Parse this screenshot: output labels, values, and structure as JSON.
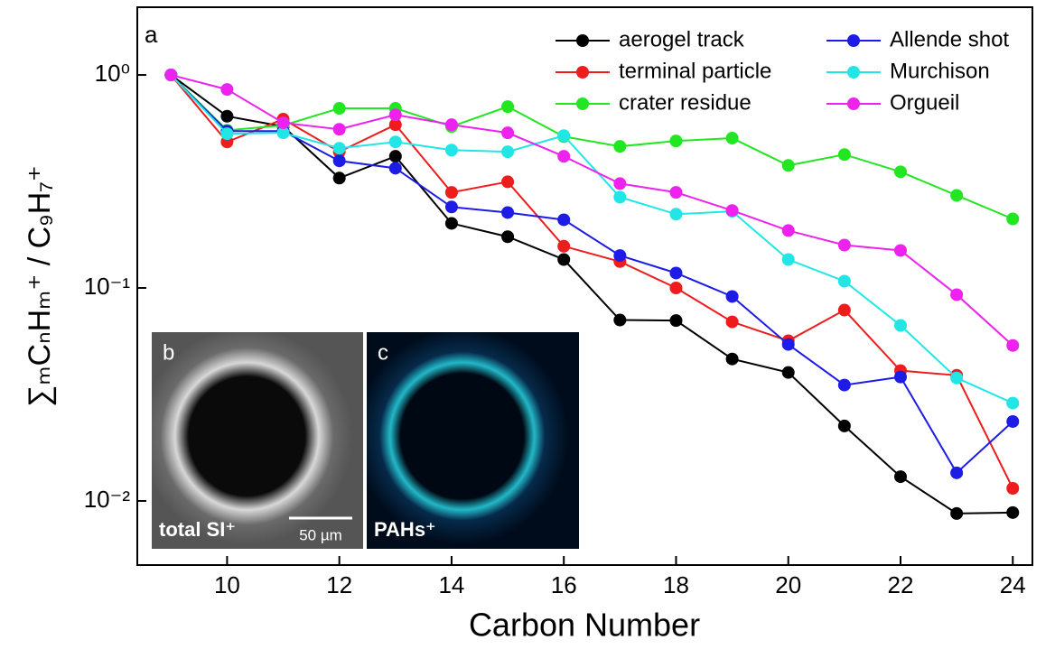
{
  "chart_data": {
    "type": "line",
    "panel_label": "a",
    "x_label": "Carbon Number",
    "y_label": "∑ₘCₙHₘ⁺ / C₉H₇⁺",
    "log_y": true,
    "x": [
      9,
      10,
      11,
      12,
      13,
      14,
      15,
      16,
      17,
      18,
      19,
      20,
      21,
      22,
      23,
      24
    ],
    "xlim": [
      8.4,
      24.35
    ],
    "xticks": [
      10,
      12,
      14,
      16,
      18,
      20,
      22,
      24
    ],
    "ylim": [
      0.005,
      2.08
    ],
    "yticks": [
      {
        "value": 1,
        "label": "10⁰"
      },
      {
        "value": 0.1,
        "label": "10⁻¹"
      },
      {
        "value": 0.01,
        "label": "10⁻²"
      }
    ],
    "series": [
      {
        "name": "aerogel track",
        "color": "#000000",
        "values": [
          1.0,
          0.64,
          0.573,
          0.328,
          0.415,
          0.201,
          0.174,
          0.136,
          0.0707,
          0.0703,
          0.0464,
          0.0401,
          0.0225,
          0.013,
          0.00873,
          0.00882
        ]
      },
      {
        "name": "terminal particle",
        "color": "#ee1c1c",
        "values": [
          1.0,
          0.485,
          0.62,
          0.436,
          0.584,
          0.281,
          0.315,
          0.157,
          0.133,
          0.1,
          0.0693,
          0.0565,
          0.0787,
          0.0409,
          0.0389,
          0.01146
        ]
      },
      {
        "name": "crater residue",
        "color": "#22e622",
        "values": [
          1.0,
          0.55,
          0.58,
          0.697,
          0.697,
          0.573,
          0.71,
          0.514,
          0.462,
          0.49,
          0.505,
          0.376,
          0.423,
          0.351,
          0.272,
          0.211
        ]
      },
      {
        "name": "Allende shot",
        "color": "#1c1ce6",
        "values": [
          1.0,
          0.545,
          0.545,
          0.395,
          0.365,
          0.24,
          0.226,
          0.209,
          0.142,
          0.1175,
          0.0912,
          0.0543,
          0.035,
          0.0382,
          0.01355,
          0.0236
        ]
      },
      {
        "name": "Murchison",
        "color": "#22e6e6",
        "values": [
          1.0,
          0.53,
          0.535,
          0.453,
          0.485,
          0.444,
          0.436,
          0.519,
          0.267,
          0.222,
          0.229,
          0.136,
          0.1076,
          0.0667,
          0.0378,
          0.0288
        ]
      },
      {
        "name": "Orgueil",
        "color": "#ee22ee",
        "values": [
          1.0,
          0.855,
          0.596,
          0.556,
          0.65,
          0.584,
          0.535,
          0.415,
          0.309,
          0.281,
          0.231,
          0.186,
          0.159,
          0.15,
          0.093,
          0.0537
        ]
      }
    ],
    "legend": "top-right",
    "insets": [
      {
        "label": "b",
        "caption": "total SI⁺",
        "scale": "50 µm"
      },
      {
        "label": "c",
        "caption": "PAHs⁺"
      }
    ]
  }
}
